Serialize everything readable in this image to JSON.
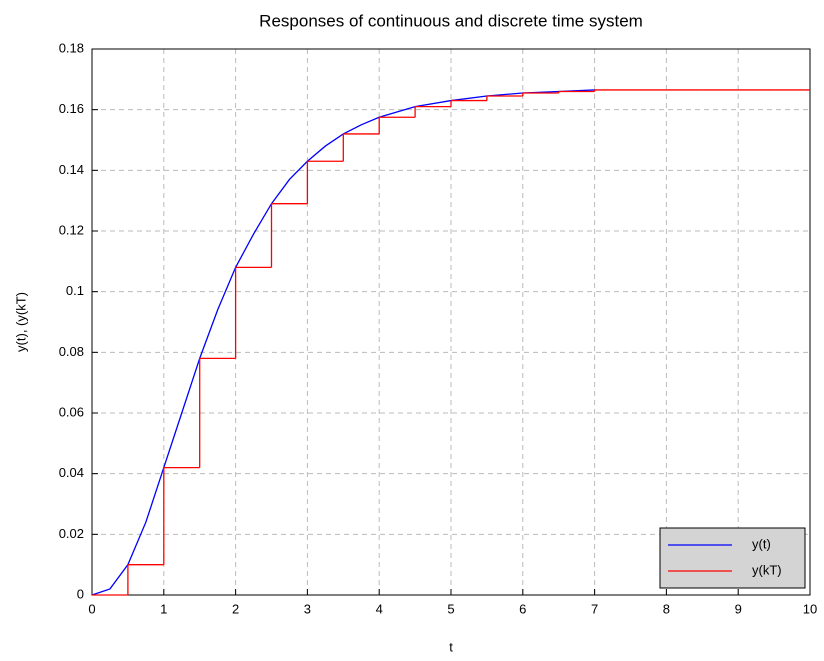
{
  "chart_data": {
    "type": "line",
    "title": "Responses of continuous and discrete time system",
    "x_label": "t",
    "y_label": "y(t), (y(kT)",
    "xlim": [
      0,
      10
    ],
    "ylim": [
      0,
      0.18
    ],
    "xticks": [
      0,
      1,
      2,
      3,
      4,
      5,
      6,
      7,
      8,
      9,
      10
    ],
    "yticks": [
      0,
      0.02,
      0.04,
      0.06,
      0.08,
      0.1,
      0.12,
      0.14,
      0.16,
      0.18
    ],
    "grid": true,
    "legend": "lower right",
    "series": [
      {
        "name": "y(t)",
        "color": "#0000ff",
        "style": "line",
        "x": [
          0,
          0.25,
          0.5,
          0.75,
          1,
          1.25,
          1.5,
          1.75,
          2,
          2.25,
          2.5,
          2.75,
          3,
          3.25,
          3.5,
          3.75,
          4,
          4.5,
          5,
          5.5,
          6,
          6.5,
          7
        ],
        "values": [
          0,
          0.002,
          0.01,
          0.024,
          0.042,
          0.06,
          0.078,
          0.094,
          0.108,
          0.119,
          0.129,
          0.137,
          0.143,
          0.148,
          0.152,
          0.155,
          0.1575,
          0.161,
          0.163,
          0.1645,
          0.1655,
          0.166,
          0.1665
        ]
      },
      {
        "name": "y(kT)",
        "color": "#ff0000",
        "style": "step",
        "x": [
          0,
          0.5,
          1,
          1.5,
          2,
          2.5,
          3,
          3.5,
          4,
          4.5,
          5,
          5.5,
          6,
          6.5,
          7,
          7.5,
          8,
          8.5,
          9,
          9.5,
          10
        ],
        "values": [
          0,
          0.01,
          0.042,
          0.078,
          0.108,
          0.129,
          0.143,
          0.152,
          0.1575,
          0.161,
          0.163,
          0.1645,
          0.1655,
          0.166,
          0.1665,
          0.1665,
          0.1665,
          0.1665,
          0.1665,
          0.1665,
          0.1665
        ]
      }
    ]
  }
}
